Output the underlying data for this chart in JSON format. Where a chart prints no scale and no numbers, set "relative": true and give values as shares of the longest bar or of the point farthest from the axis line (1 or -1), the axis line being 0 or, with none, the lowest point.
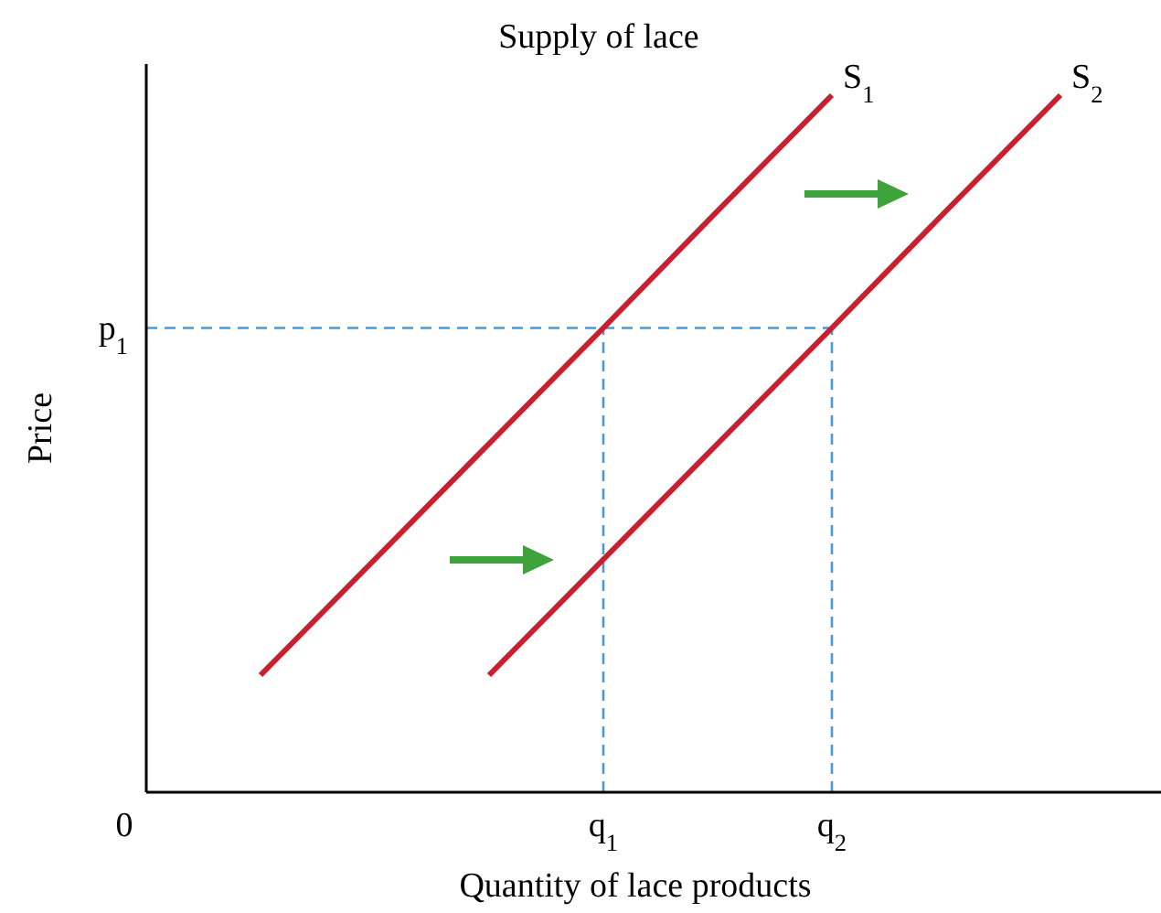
{
  "chart_data": {
    "type": "line",
    "title": "Supply of lace",
    "xlabel": "Quantity of lace products",
    "ylabel": "Price",
    "relative": true,
    "categories": [
      "0",
      null,
      null,
      null,
      "q$_{1}$",
      null,
      "q$_{2}$",
      null,
      null
    ],
    "grid": false,
    "series": [
      {
        "name": "S$_{1}$",
        "color": "#c8202f",
        "values": [
          null,
          0.168,
          0.334,
          0.5,
          0.666,
          0.834,
          1,
          null,
          null
        ]
      },
      {
        "name": "S$_{2}$",
        "color": "#c8202f",
        "values": [
          null,
          null,
          null,
          0.168,
          0.334,
          0.5,
          0.666,
          0.834,
          1
        ]
      }
    ],
    "ref_lines": [
      {
        "axis": "y",
        "value": 0.666,
        "label": "p$_{1}$",
        "color": "#4a9ad8",
        "line_style": "dashed"
      },
      {
        "axis": "x",
        "value": "q$_{1}$",
        "color": "#4a9ad8",
        "line_style": "dashed"
      },
      {
        "axis": "x",
        "value": "q$_{2}$",
        "color": "#4a9ad8",
        "line_style": "dashed"
      }
    ]
  }
}
